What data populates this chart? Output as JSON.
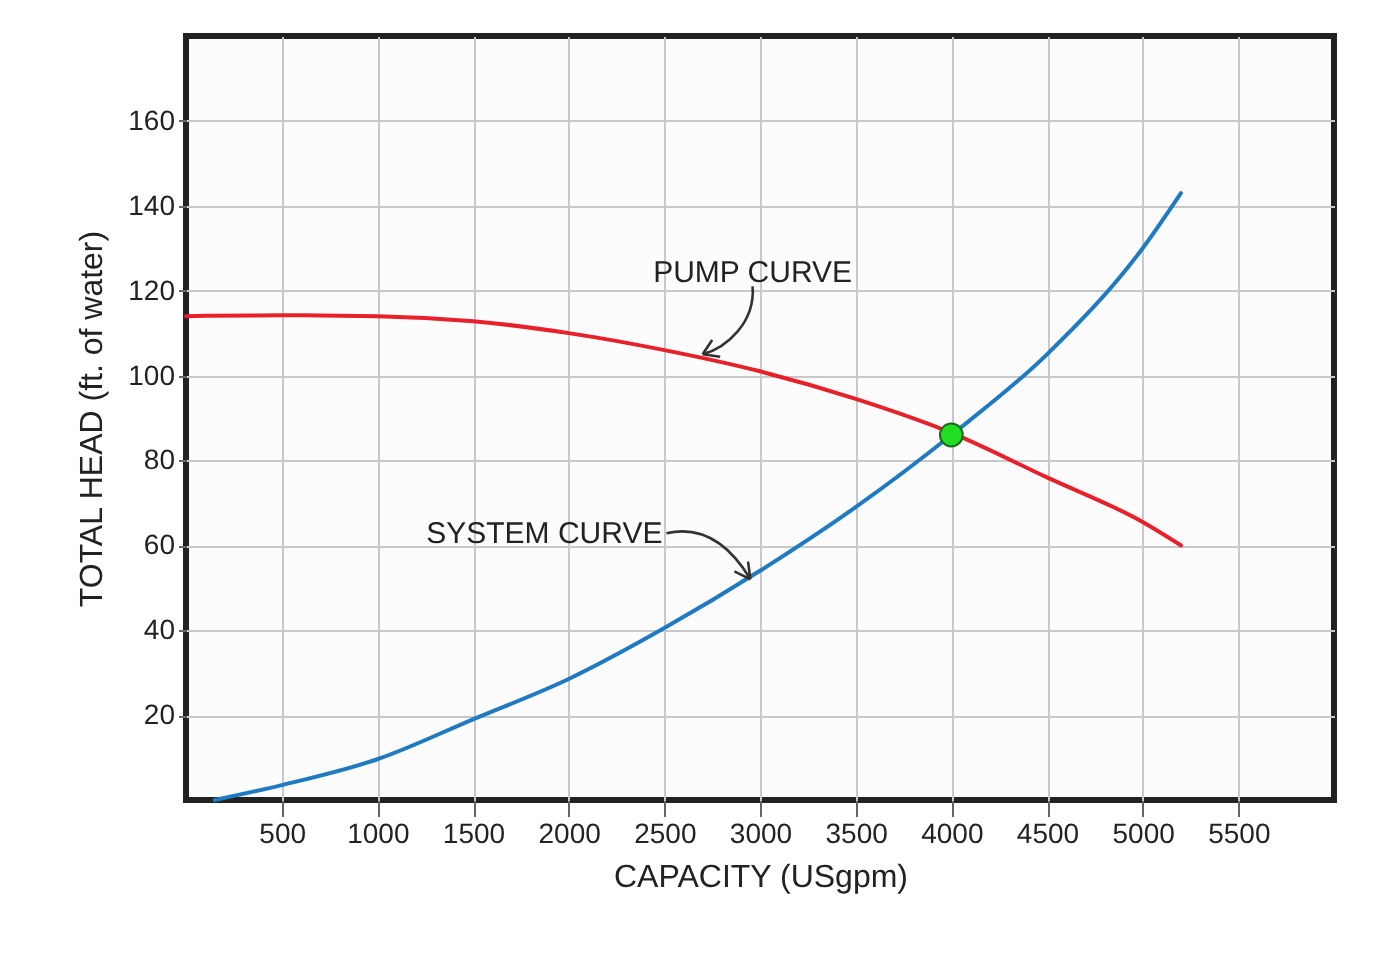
{
  "chart_data": {
    "type": "line",
    "xlabel": "CAPACITY (USgpm)",
    "ylabel": "TOTAL HEAD (ft. of water)",
    "xlim": [
      0,
      6000
    ],
    "xticks": [
      500,
      1000,
      1500,
      2000,
      2500,
      3000,
      3500,
      4000,
      4500,
      5000,
      5500
    ],
    "ylim": [
      0,
      180
    ],
    "yticks": [
      20,
      40,
      60,
      80,
      100,
      120,
      140,
      160
    ],
    "grid": true,
    "series": [
      {
        "color": "#e8202a",
        "x": [
          0,
          500,
          1000,
          1500,
          2000,
          2500,
          3000,
          3500,
          4000,
          4500,
          5000,
          5200
        ],
        "values": [
          114,
          114.2,
          114,
          112.8,
          110,
          106,
          101,
          94.5,
          86.5,
          76,
          65.5,
          60
        ]
      },
      {
        "color": "#1f7ac2",
        "x": [
          150,
          500,
          1000,
          1500,
          2000,
          2500,
          3000,
          3500,
          4000,
          4500,
          5000,
          5200
        ],
        "values": [
          0,
          3.5,
          9.6,
          19,
          28.5,
          40.5,
          54,
          69,
          86,
          105,
          130,
          143
        ]
      },
      {
        "type": "scatter",
        "color": "#22dd22",
        "marker": "circle",
        "x": [
          4000
        ],
        "values": [
          86
        ]
      }
    ],
    "annotations": [
      {
        "text": "PUMP CURVE",
        "x": 2700,
        "y": 105
      },
      {
        "text": "SYSTEM CURVE",
        "x": 2950,
        "y": 52
      }
    ]
  }
}
